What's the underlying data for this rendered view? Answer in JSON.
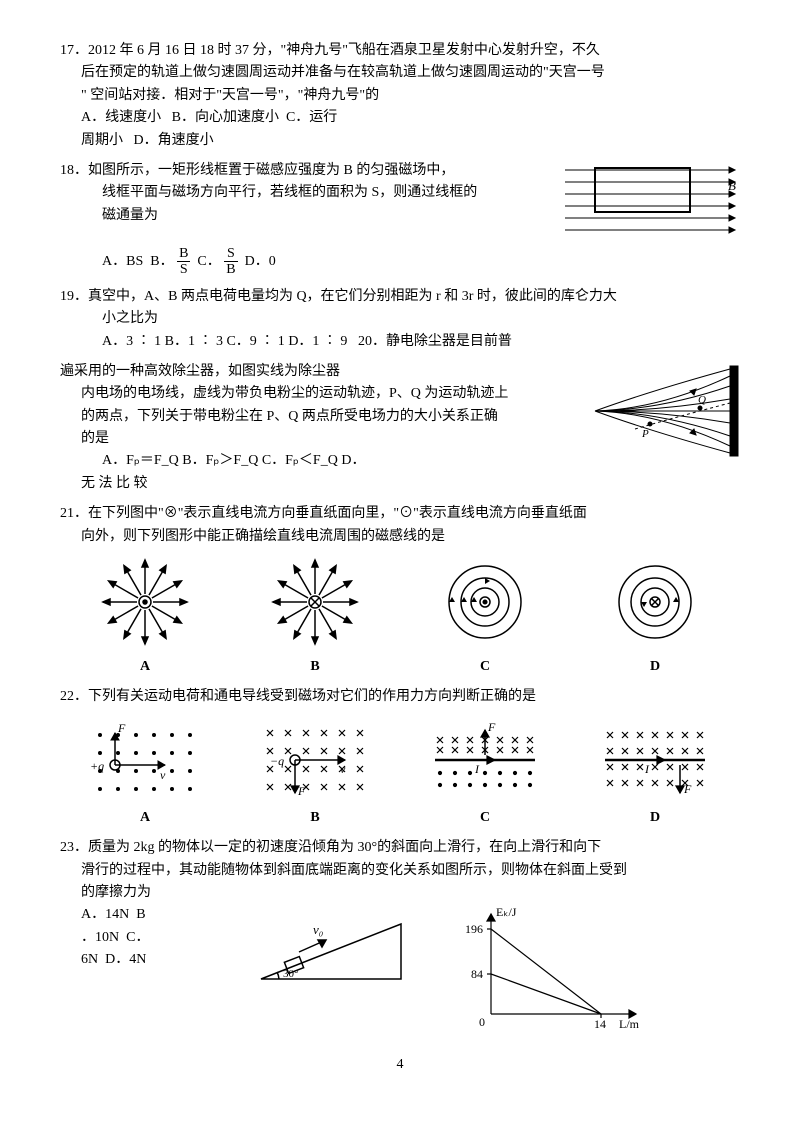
{
  "q17": {
    "num": "17．",
    "text1": "2012 年 6 月 16 日 18 时 37 分，\"神舟九号\"飞船在酒泉卫星发射中心发射升空，不久",
    "text2": "后在预定的轨道上做匀速圆周运动并准备与在较高轨道上做匀速圆周运动的\"天宫一号",
    "text3": "\"  空间站对接．相对于\"天宫一号\"，\"神舟九号\"的",
    "optA": "A．线速度小",
    "optB": "B．向心加速度小",
    "optC": "C．运行",
    "optC2": "周期小",
    "optD": "D．角速度小"
  },
  "q18": {
    "num": "18．",
    "text1": "如图所示，一矩形线框置于磁感应强度为 B 的匀强磁场中，",
    "text2": "线框平面与磁场方向平行，若线框的面积为  S，则通过线框的",
    "text3": "磁通量为",
    "optA_pre": "A．BS",
    "optB_pre": "B．",
    "optB_frac_num": "B",
    "optB_frac_den": "S",
    "optC_pre": "C．",
    "optC_frac_num": "S",
    "optC_frac_den": "B",
    "optD": "D．0",
    "fig_label": "B"
  },
  "q19": {
    "num": "19．",
    "text1": "真空中，A、B 两点电荷电量均为 Q，在它们分别相距为 r 和 3r 时，彼此间的库仑力大",
    "text2": "小之比为",
    "optA": "A．3 ∶ 1",
    "optB": "B．1 ∶ 3",
    "optC": "C．9 ∶ 1",
    "optD": "D．1 ∶ 9"
  },
  "q20": {
    "num": "20．",
    "text0": "静电除尘器是目前普",
    "text1": "遍采用的一种高效除尘器，如图实线为除尘器",
    "text2": "内电场的电场线，虚线为带负电粉尘的运动轨迹，P、Q 为运动轨迹上",
    "text3": "的两点，下列关于带电粉尘在 P、Q 两点所受电场力的大小关系正确",
    "text4": "的是",
    "optA": "A．Fₚ＝F_Q",
    "optB": "B．Fₚ＞F_Q",
    "optC": "C．Fₚ＜F_Q",
    "optD": "D．",
    "optD2": "无 法 比 较",
    "fig_Q": "Q",
    "fig_P": "P"
  },
  "q21": {
    "num": "21．",
    "text1": "在下列图中\"⊗\"表示直线电流方向垂直纸面向里，\"⊙\"表示直线电流方向垂直纸面",
    "text2": "向外，则下列图形中能正确描绘直线电流周围的磁感线的是",
    "labels": {
      "A": "A",
      "B": "B",
      "C": "C",
      "D": "D"
    }
  },
  "q22": {
    "num": "22．",
    "text1": "下列有关运动电荷和通电导线受到磁场对它们的作用力方向判断正确的是",
    "labels": {
      "A": "A",
      "B": "B",
      "C": "C",
      "D": "D"
    },
    "sym": {
      "F": "F",
      "v": "v",
      "I": "I",
      "plusq": "+q",
      "minusq": "−q"
    }
  },
  "q23": {
    "num": "23．",
    "text1": "质量为 2kg 的物体以一定的初速度沿倾角为 30°的斜面向上滑行，在向上滑行和向下",
    "text2": "滑行的过程中，其动能随物体到斜面底端距离的变化关系如图所示，则物体在斜面上受到",
    "text3": "的摩擦力为",
    "optA": "A．14N",
    "optB": "B",
    "optB2": "．10N",
    "optC": "C．",
    "optC2": "6N",
    "optD": "D．4N",
    "fig_v0": "v₀",
    "fig_angle": "30°",
    "graph_ylabel": "Eₖ/J",
    "graph_xlabel": "L/m",
    "graph_y1": "196",
    "graph_y2": "84",
    "graph_y0": "0",
    "graph_x1": "14"
  },
  "pageNum": "4"
}
